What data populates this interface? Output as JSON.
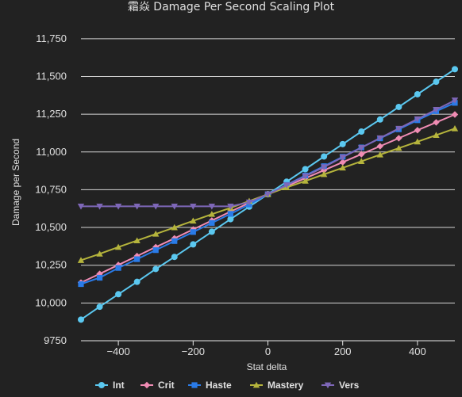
{
  "chart_data": {
    "type": "line",
    "title": "霜焱 Damage Per Second Scaling Plot",
    "xlabel": "Stat delta",
    "ylabel": "Damage per Second",
    "xlim": [
      -500,
      500
    ],
    "ylim": [
      9750,
      11875
    ],
    "xticks": [
      -400,
      -200,
      0,
      200,
      400
    ],
    "xtick_labels": [
      "−400",
      "−200",
      "0",
      "200",
      "400"
    ],
    "yticks": [
      9750,
      10000,
      10250,
      10500,
      10750,
      11000,
      11250,
      11500,
      11750
    ],
    "ytick_labels": [
      "9750",
      "10,000",
      "10,250",
      "10,500",
      "10,750",
      "11,000",
      "11,250",
      "11,500",
      "11,750"
    ],
    "grid": true,
    "legend_position": "bottom",
    "x": [
      -500,
      -450,
      -400,
      -350,
      -300,
      -250,
      -200,
      -150,
      -100,
      -50,
      0,
      50,
      100,
      150,
      200,
      250,
      300,
      350,
      400,
      450,
      500
    ],
    "series": [
      {
        "name": "Int",
        "color": "#5bc8f0",
        "marker": "circle",
        "values": [
          9890,
          9975,
          10058,
          10140,
          10225,
          10305,
          10388,
          10472,
          10555,
          10638,
          10720,
          10803,
          10886,
          10970,
          11052,
          11135,
          11215,
          11298,
          11382,
          11465,
          11548
        ]
      },
      {
        "name": "Crit",
        "color": "#f08cb4",
        "marker": "diamond",
        "values": [
          10135,
          10193,
          10252,
          10311,
          10370,
          10428,
          10487,
          10546,
          10605,
          10663,
          10720,
          10773,
          10826,
          10879,
          10932,
          10985,
          11038,
          11091,
          11144,
          11196,
          11248
        ]
      },
      {
        "name": "Haste",
        "color": "#2a7be8",
        "marker": "square",
        "values": [
          10125,
          10167,
          10232,
          10290,
          10350,
          10410,
          10470,
          10530,
          10590,
          10652,
          10720,
          10782,
          10844,
          10906,
          10968,
          11030,
          11090,
          11150,
          11210,
          11270,
          11325
        ]
      },
      {
        "name": "Mastery",
        "color": "#b5b43c",
        "marker": "triangle",
        "values": [
          10283,
          10325,
          10370,
          10413,
          10457,
          10500,
          10544,
          10588,
          10630,
          10675,
          10720,
          10765,
          10808,
          10852,
          10895,
          10938,
          10982,
          11025,
          11068,
          11111,
          11155
        ]
      },
      {
        "name": "Vers",
        "color": "#7e67b8",
        "marker": "triangle-down",
        "values": [
          10640,
          10640,
          10640,
          10640,
          10640,
          10640,
          10640,
          10640,
          10640,
          10667,
          10720,
          10780,
          10840,
          10900,
          10965,
          11028,
          11092,
          11155,
          11218,
          11280,
          11342
        ]
      }
    ]
  }
}
